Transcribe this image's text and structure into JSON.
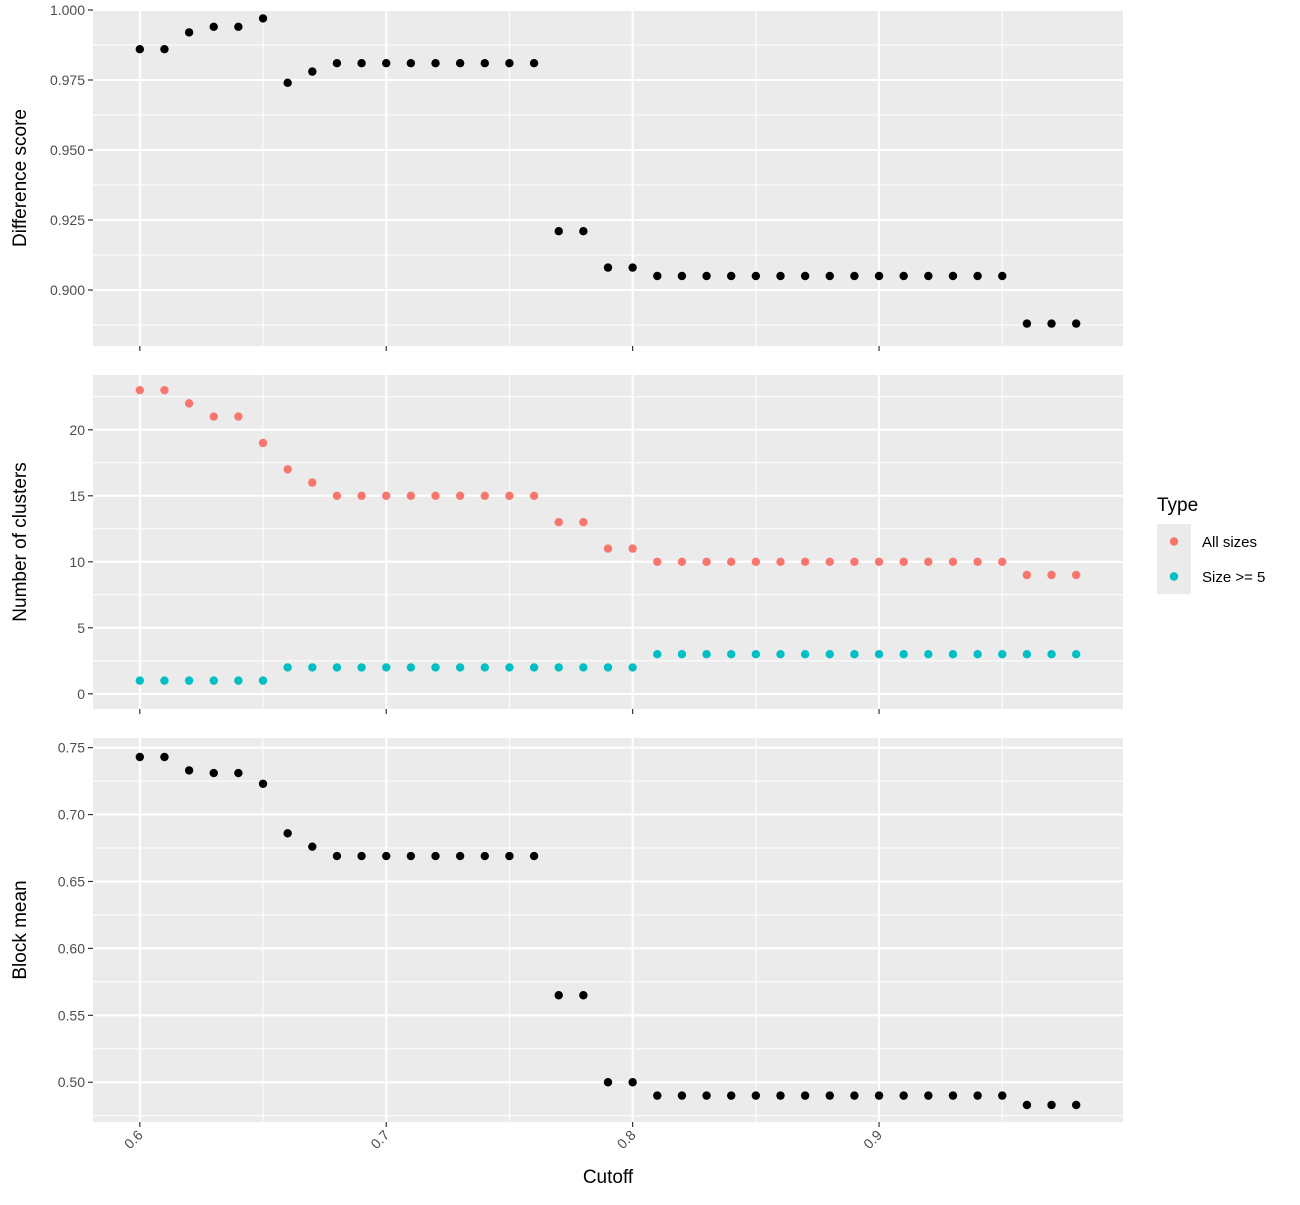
{
  "chart_data": [
    {
      "type": "scatter",
      "ylabel": "Difference score",
      "ylim": [
        0.88,
        1.0
      ],
      "yticks": [
        "0.900",
        "0.925",
        "0.950",
        "0.975",
        "1.000"
      ],
      "ytick_values": [
        0.9,
        0.925,
        0.95,
        0.975,
        1.0
      ],
      "series": [
        {
          "color": "#000000",
          "x": [
            0.6,
            0.61,
            0.62,
            0.63,
            0.64,
            0.65,
            0.66,
            0.67,
            0.68,
            0.69,
            0.7,
            0.71,
            0.72,
            0.73,
            0.74,
            0.75,
            0.76,
            0.77,
            0.78,
            0.79,
            0.8,
            0.81,
            0.82,
            0.83,
            0.84,
            0.85,
            0.86,
            0.87,
            0.88,
            0.89,
            0.9,
            0.91,
            0.92,
            0.93,
            0.94,
            0.95,
            0.96,
            0.97,
            0.98
          ],
          "y": [
            0.986,
            0.986,
            0.992,
            0.994,
            0.994,
            0.997,
            0.974,
            0.978,
            0.981,
            0.981,
            0.981,
            0.981,
            0.981,
            0.981,
            0.981,
            0.981,
            0.981,
            0.921,
            0.921,
            0.908,
            0.908,
            0.905,
            0.905,
            0.905,
            0.905,
            0.905,
            0.905,
            0.905,
            0.905,
            0.905,
            0.905,
            0.905,
            0.905,
            0.905,
            0.905,
            0.905,
            0.888,
            0.888,
            0.888
          ]
        }
      ]
    },
    {
      "type": "scatter",
      "ylabel": "Number of clusters",
      "ylim": [
        0,
        23
      ],
      "yticks": [
        "0",
        "5",
        "10",
        "15",
        "20"
      ],
      "ytick_values": [
        0,
        5,
        10,
        15,
        20
      ],
      "series": [
        {
          "name": "All sizes",
          "color": "#F8766D",
          "x": [
            0.6,
            0.61,
            0.62,
            0.63,
            0.64,
            0.65,
            0.66,
            0.67,
            0.68,
            0.69,
            0.7,
            0.71,
            0.72,
            0.73,
            0.74,
            0.75,
            0.76,
            0.77,
            0.78,
            0.79,
            0.8,
            0.81,
            0.82,
            0.83,
            0.84,
            0.85,
            0.86,
            0.87,
            0.88,
            0.89,
            0.9,
            0.91,
            0.92,
            0.93,
            0.94,
            0.95,
            0.96,
            0.97,
            0.98
          ],
          "y": [
            23,
            23,
            22,
            21,
            21,
            19,
            17,
            16,
            15,
            15,
            15,
            15,
            15,
            15,
            15,
            15,
            15,
            13,
            13,
            11,
            11,
            10,
            10,
            10,
            10,
            10,
            10,
            10,
            10,
            10,
            10,
            10,
            10,
            10,
            10,
            10,
            9,
            9,
            9
          ]
        },
        {
          "name": "Size >= 5",
          "color": "#00BFC4",
          "x": [
            0.6,
            0.61,
            0.62,
            0.63,
            0.64,
            0.65,
            0.66,
            0.67,
            0.68,
            0.69,
            0.7,
            0.71,
            0.72,
            0.73,
            0.74,
            0.75,
            0.76,
            0.77,
            0.78,
            0.79,
            0.8,
            0.81,
            0.82,
            0.83,
            0.84,
            0.85,
            0.86,
            0.87,
            0.88,
            0.89,
            0.9,
            0.91,
            0.92,
            0.93,
            0.94,
            0.95,
            0.96,
            0.97,
            0.98
          ],
          "y": [
            1,
            1,
            1,
            1,
            1,
            1,
            2,
            2,
            2,
            2,
            2,
            2,
            2,
            2,
            2,
            2,
            2,
            2,
            2,
            2,
            2,
            3,
            3,
            3,
            3,
            3,
            3,
            3,
            3,
            3,
            3,
            3,
            3,
            3,
            3,
            3,
            3,
            3,
            3
          ]
        }
      ]
    },
    {
      "type": "scatter",
      "ylabel": "Block mean",
      "xlabel": "Cutoff",
      "ylim": [
        0.48,
        0.745
      ],
      "yticks": [
        "0.50",
        "0.55",
        "0.60",
        "0.65",
        "0.70",
        "0.75"
      ],
      "ytick_values": [
        0.5,
        0.55,
        0.6,
        0.65,
        0.7,
        0.75
      ],
      "series": [
        {
          "color": "#000000",
          "x": [
            0.6,
            0.61,
            0.62,
            0.63,
            0.64,
            0.65,
            0.66,
            0.67,
            0.68,
            0.69,
            0.7,
            0.71,
            0.72,
            0.73,
            0.74,
            0.75,
            0.76,
            0.77,
            0.78,
            0.79,
            0.8,
            0.81,
            0.82,
            0.83,
            0.84,
            0.85,
            0.86,
            0.87,
            0.88,
            0.89,
            0.9,
            0.91,
            0.92,
            0.93,
            0.94,
            0.95,
            0.96,
            0.97,
            0.98
          ],
          "y": [
            0.743,
            0.743,
            0.733,
            0.731,
            0.731,
            0.723,
            0.686,
            0.676,
            0.669,
            0.669,
            0.669,
            0.669,
            0.669,
            0.669,
            0.669,
            0.669,
            0.669,
            0.565,
            0.565,
            0.5,
            0.5,
            0.49,
            0.49,
            0.49,
            0.49,
            0.49,
            0.49,
            0.49,
            0.49,
            0.49,
            0.49,
            0.49,
            0.49,
            0.49,
            0.49,
            0.49,
            0.483,
            0.483,
            0.483
          ]
        }
      ]
    }
  ],
  "x_axis": {
    "range": [
      0.6,
      0.98
    ],
    "ticks": [
      "0.6",
      "0.7",
      "0.8",
      "0.9"
    ],
    "tick_values": [
      0.6,
      0.7,
      0.8,
      0.9
    ],
    "label": "Cutoff"
  },
  "legend": {
    "title": "Type",
    "placement": "right",
    "items": [
      {
        "label": "All sizes",
        "color": "#F8766D"
      },
      {
        "label": "Size >= 5",
        "color": "#00BFC4"
      }
    ]
  },
  "style": {
    "panel_background": "#EBEBEB",
    "grid_color": "#FFFFFF",
    "tick_color": "#333333"
  }
}
